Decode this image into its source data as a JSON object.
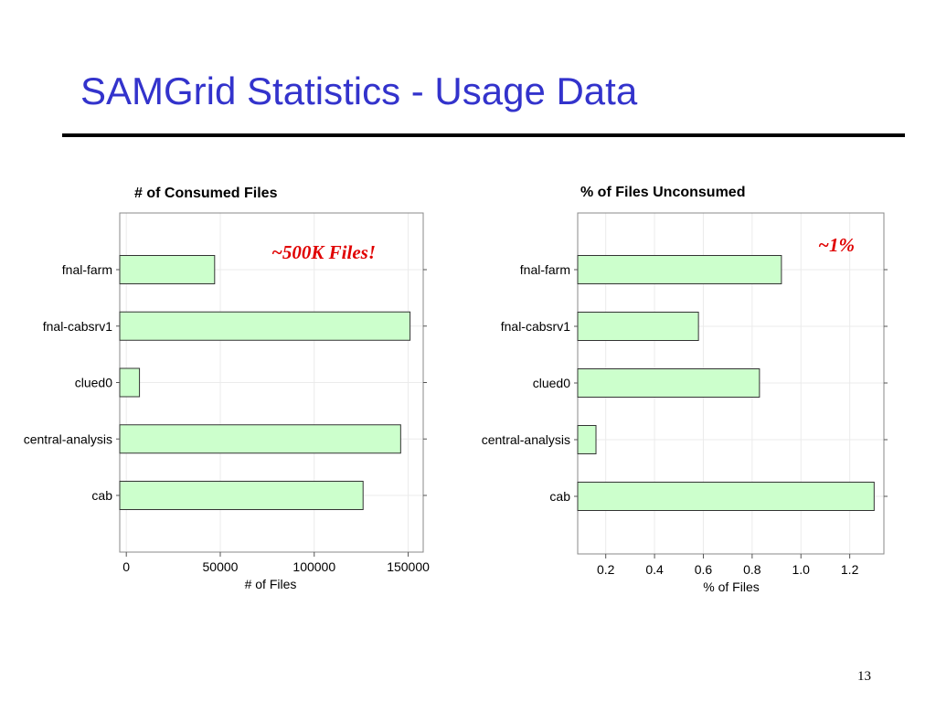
{
  "slide": {
    "title": "SAMGrid Statistics - Usage Data",
    "page_number": "13"
  },
  "colors": {
    "title": "#3333cc",
    "bar_fill": "#ccffcc",
    "annotation": "#e00000"
  },
  "chart_data": [
    {
      "type": "bar",
      "orientation": "horizontal",
      "title": "# of Consumed Files",
      "xlabel": "# of Files",
      "ylabel": "",
      "categories": [
        "fnal-farm",
        "fnal-cabsrv1",
        "clued0",
        "central-analysis",
        "cab"
      ],
      "values": [
        47000,
        151000,
        7000,
        146000,
        126000
      ],
      "xlim": [
        -3500,
        158000
      ],
      "xticks": [
        0,
        50000,
        100000,
        150000
      ],
      "xtick_labels": [
        "0",
        "50000",
        "100000",
        "150000"
      ],
      "grid": true,
      "annotation": "~500K Files!"
    },
    {
      "type": "bar",
      "orientation": "horizontal",
      "title": "% of Files Unconsumed",
      "xlabel": "% of Files",
      "ylabel": "",
      "categories": [
        "fnal-farm",
        "fnal-cabsrv1",
        "clued0",
        "central-analysis",
        "cab"
      ],
      "values": [
        0.92,
        0.58,
        0.83,
        0.16,
        1.3
      ],
      "xlim": [
        0.085,
        1.34
      ],
      "xticks": [
        0.2,
        0.4,
        0.6,
        0.8,
        1.0,
        1.2
      ],
      "xtick_labels": [
        "0.2",
        "0.4",
        "0.6",
        "0.8",
        "1.0",
        "1.2"
      ],
      "grid": true,
      "annotation": "~1%"
    }
  ]
}
